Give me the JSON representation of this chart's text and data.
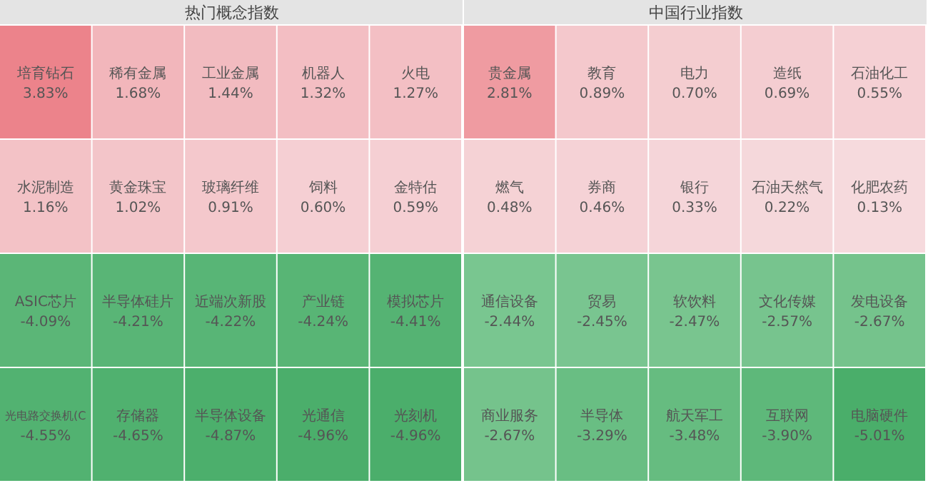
{
  "chart_data": [
    {
      "type": "other",
      "title": "热门概念指数",
      "categories": [
        "培育钻石",
        "稀有金属",
        "工业金属",
        "机器人",
        "火电",
        "水泥制造",
        "黄金珠宝",
        "玻璃纤维",
        "饲料",
        "金特估",
        "ASIC芯片",
        "半导体硅片",
        "近端次新股",
        "产业链",
        "模拟芯片",
        "光电路交换机(C",
        "存储器",
        "半导体设备",
        "光通信",
        "光刻机"
      ],
      "values": [
        3.83,
        1.68,
        1.44,
        1.32,
        1.27,
        1.16,
        1.02,
        0.91,
        0.6,
        0.59,
        -4.09,
        -4.21,
        -4.22,
        -4.24,
        -4.41,
        -4.55,
        -4.65,
        -4.87,
        -4.96,
        -4.96
      ],
      "value_labels": [
        "3.83%",
        "1.68%",
        "1.44%",
        "1.32%",
        "1.27%",
        "1.16%",
        "1.02%",
        "0.91%",
        "0.60%",
        "0.59%",
        "-4.09%",
        "-4.21%",
        "-4.22%",
        "-4.24%",
        "-4.41%",
        "-4.55%",
        "-4.65%",
        "-4.87%",
        "-4.96%",
        "-4.96%"
      ]
    },
    {
      "type": "other",
      "title": "中国行业指数",
      "categories": [
        "贵金属",
        "教育",
        "电力",
        "造纸",
        "石油化工",
        "燃气",
        "券商",
        "银行",
        "石油天然气",
        "化肥农药",
        "通信设备",
        "贸易",
        "软饮料",
        "文化传媒",
        "发电设备",
        "商业服务",
        "半导体",
        "航天军工",
        "互联网",
        "电脑硬件"
      ],
      "values": [
        2.81,
        0.89,
        0.7,
        0.69,
        0.55,
        0.48,
        0.46,
        0.33,
        0.22,
        0.13,
        -2.44,
        -2.45,
        -2.47,
        -2.57,
        -2.67,
        -2.67,
        -3.29,
        -3.48,
        -3.9,
        -5.01
      ],
      "value_labels": [
        "2.81%",
        "0.89%",
        "0.70%",
        "0.69%",
        "0.55%",
        "0.48%",
        "0.46%",
        "0.33%",
        "0.22%",
        "0.13%",
        "-2.44%",
        "-2.45%",
        "-2.47%",
        "-2.57%",
        "-2.67%",
        "-2.67%",
        "-3.29%",
        "-3.48%",
        "-3.90%",
        "-5.01%"
      ]
    }
  ]
}
